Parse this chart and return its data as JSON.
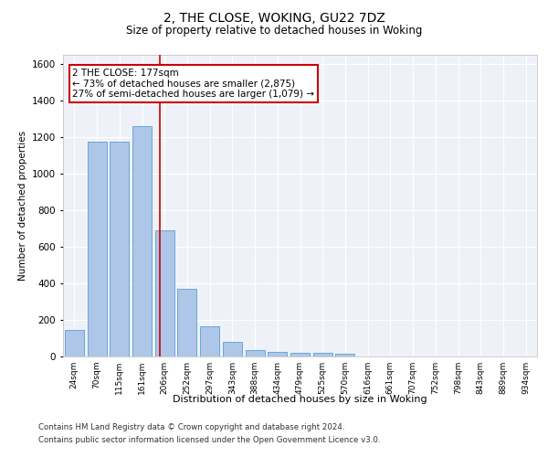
{
  "title": "2, THE CLOSE, WOKING, GU22 7DZ",
  "subtitle": "Size of property relative to detached houses in Woking",
  "xlabel": "Distribution of detached houses by size in Woking",
  "ylabel": "Number of detached properties",
  "bin_labels": [
    "24sqm",
    "70sqm",
    "115sqm",
    "161sqm",
    "206sqm",
    "252sqm",
    "297sqm",
    "343sqm",
    "388sqm",
    "434sqm",
    "479sqm",
    "525sqm",
    "570sqm",
    "616sqm",
    "661sqm",
    "707sqm",
    "752sqm",
    "798sqm",
    "843sqm",
    "889sqm",
    "934sqm"
  ],
  "bar_values": [
    145,
    1175,
    1175,
    1260,
    690,
    370,
    165,
    80,
    35,
    25,
    20,
    20,
    15,
    0,
    0,
    0,
    0,
    0,
    0,
    0,
    0
  ],
  "bar_color": "#aec6e8",
  "bar_edge_color": "#5a9fd4",
  "annotation_text": "2 THE CLOSE: 177sqm\n← 73% of detached houses are smaller (2,875)\n27% of semi-detached houses are larger (1,079) →",
  "annotation_box_color": "#ffffff",
  "annotation_box_edge_color": "#cc0000",
  "ylim": [
    0,
    1650
  ],
  "yticks": [
    0,
    200,
    400,
    600,
    800,
    1000,
    1200,
    1400,
    1600
  ],
  "footer_line1": "Contains HM Land Registry data © Crown copyright and database right 2024.",
  "footer_line2": "Contains public sector information licensed under the Open Government Licence v3.0.",
  "background_color": "#eef2f8",
  "grid_color": "#ffffff",
  "fig_bg_color": "#ffffff",
  "red_line_x": 3.78
}
